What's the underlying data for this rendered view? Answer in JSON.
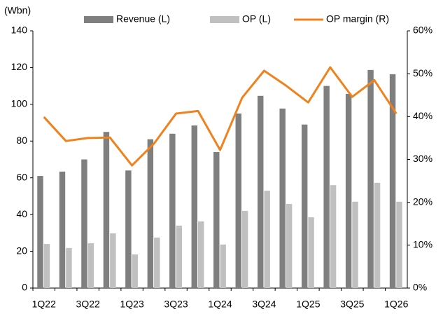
{
  "chart_data": {
    "type": "bar_line",
    "y_axis_label": "(Wbn)",
    "categories": [
      "1Q22",
      null,
      "3Q22",
      null,
      "1Q23",
      null,
      "3Q23",
      null,
      "1Q24",
      null,
      "3Q24",
      null,
      "1Q25",
      null,
      "3Q25",
      null,
      "1Q26"
    ],
    "series": [
      {
        "name": "Revenue (L)",
        "type": "bar",
        "color": "#7f7f7f",
        "values": [
          61,
          63.4,
          70,
          85,
          64,
          81,
          84,
          88.5,
          74,
          95,
          104.6,
          97.7,
          89,
          110,
          105.7,
          118.7,
          116.4
        ]
      },
      {
        "name": "OP (L)",
        "type": "bar",
        "color": "#c0c0c0",
        "values": [
          24,
          21.8,
          24.4,
          29.8,
          18.3,
          27.5,
          34,
          36.3,
          23.7,
          42,
          53,
          45.8,
          38.5,
          56,
          47,
          57.3,
          47
        ]
      },
      {
        "name": "OP margin (R)",
        "type": "line",
        "axis": "y2",
        "color": "#f0821e",
        "values": [
          39.9,
          34.3,
          35,
          35.1,
          28.6,
          33.7,
          40.7,
          41.3,
          32.2,
          44.4,
          50.7,
          47.2,
          43.3,
          51.5,
          44.6,
          48.5,
          40.7
        ]
      }
    ],
    "ylim": [
      0,
      140
    ],
    "yticks": [
      0,
      20,
      40,
      60,
      80,
      100,
      120,
      140
    ],
    "y2lim": [
      0,
      60
    ],
    "y2ticks": [
      {
        "value": 0,
        "label": "0%"
      },
      {
        "value": 10,
        "label": "10%"
      },
      {
        "value": 20,
        "label": "20%"
      },
      {
        "value": 30,
        "label": "30%"
      },
      {
        "value": 40,
        "label": "40%"
      },
      {
        "value": 50,
        "label": "50%"
      },
      {
        "value": 60,
        "label": "60%"
      }
    ],
    "grid": false,
    "legend": "top"
  }
}
